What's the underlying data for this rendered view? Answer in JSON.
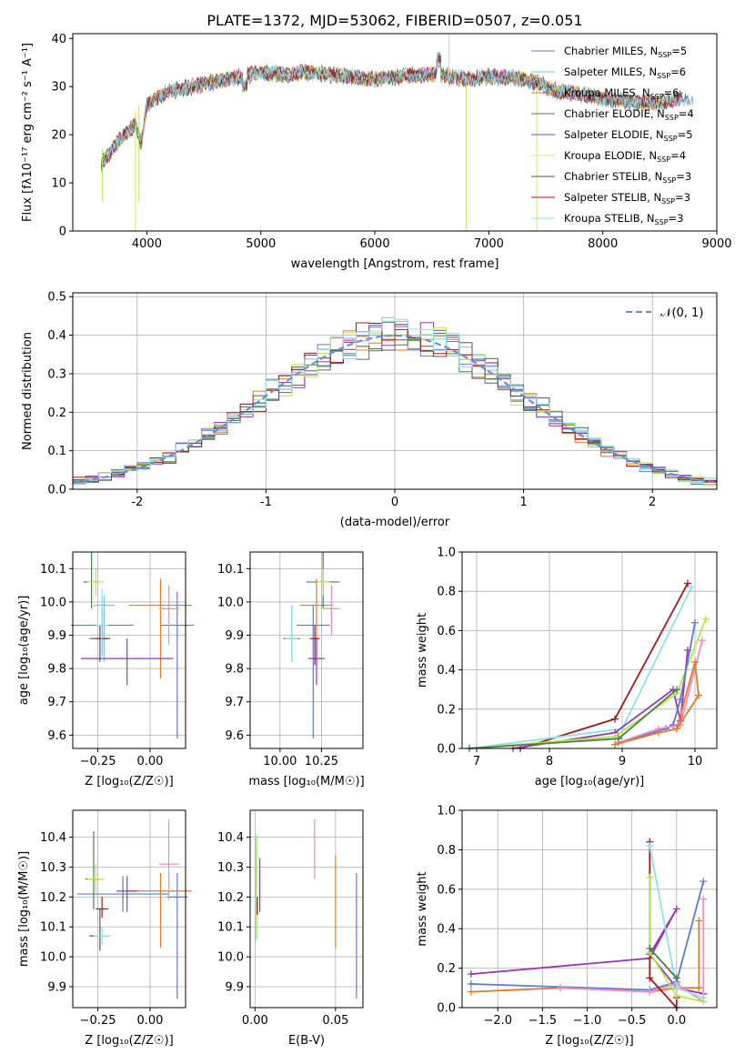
{
  "colors": {
    "chabrier_miles": "#5b7bd6",
    "salpeter_miles": "#7fbcf0",
    "kroupa_miles": "#e07b2a",
    "chabrier_elodie": "#4a7f4a",
    "salpeter_elodie": "#9b35b5",
    "kroupa_elodie": "#e5dc5a",
    "chabrier_stelib": "#555555",
    "salpeter_stelib": "#a31a1a",
    "kroupa_stelib": "#8fe0e8",
    "extra_pink": "#f08cbf",
    "extra_lime": "#b3e84a",
    "normal": "#6a8fd4",
    "grid": "#b0b0b0"
  },
  "chart_data": [
    {
      "id": "spectrum",
      "type": "line",
      "title": "PLATE=1372, MJD=53062, FIBERID=0507, z=0.051",
      "xlabel": "wavelength [Angstrom, rest frame]",
      "ylabel": "Flux [fλ10⁻¹⁷ erg cm⁻² s⁻¹ A⁻¹]",
      "xlim": [
        3350,
        9000
      ],
      "ylim": [
        0,
        41
      ],
      "xticks": [
        4000,
        5000,
        6000,
        7000,
        8000,
        9000
      ],
      "yticks": [
        0,
        10,
        20,
        30,
        40
      ],
      "grid": false,
      "legend_position": "top-right",
      "series": [
        {
          "name": "Chabrier MILES, N",
          "sub": "SSP",
          "suffix": "=5",
          "color": "#5b7bd6"
        },
        {
          "name": "Salpeter MILES, N",
          "sub": "SSP",
          "suffix": "=6",
          "color": "#7fbcf0"
        },
        {
          "name": "Kroupa MILES, N",
          "sub": "SSP",
          "suffix": "=6",
          "color": "#e07b2a"
        },
        {
          "name": "Chabrier ELODIE, N",
          "sub": "SSP",
          "suffix": "=4",
          "color": "#4a7f4a"
        },
        {
          "name": "Salpeter ELODIE, N",
          "sub": "SSP",
          "suffix": "=5",
          "color": "#9b35b5"
        },
        {
          "name": "Kroupa ELODIE, N",
          "sub": "SSP",
          "suffix": "=4",
          "color": "#e5dc5a"
        },
        {
          "name": "Chabrier STELIB, N",
          "sub": "SSP",
          "suffix": "=3",
          "color": "#555555"
        },
        {
          "name": "Salpeter STELIB, N",
          "sub": "SSP",
          "suffix": "=3",
          "color": "#a31a1a"
        },
        {
          "name": "Kroupa STELIB, N",
          "sub": "SSP",
          "suffix": "=3",
          "color": "#8fe0e8"
        }
      ],
      "continuum": {
        "x": [
          3600,
          3700,
          3800,
          3900,
          3950,
          4000,
          4100,
          4200,
          4400,
          4600,
          4800,
          5000,
          5200,
          5400,
          5600,
          5800,
          6000,
          6200,
          6400,
          6600,
          6800,
          7000,
          7200,
          7400,
          7600,
          7800,
          8000,
          8200,
          8400,
          8600,
          8800
        ],
        "y": [
          14,
          17,
          20,
          22,
          18,
          26,
          28,
          29,
          30,
          31,
          32,
          33,
          32.5,
          33,
          32.5,
          32,
          31.5,
          32,
          32.5,
          32.5,
          31.5,
          32,
          32,
          31,
          29,
          28.5,
          27.5,
          27,
          26.5,
          27,
          28
        ]
      }
    },
    {
      "id": "residuals",
      "type": "line",
      "xlabel": "(data-model)/error",
      "ylabel": "Normed distribution",
      "xlim": [
        -2.5,
        2.5
      ],
      "ylim": [
        0,
        0.51
      ],
      "xticks": [
        -2,
        -1,
        0,
        1,
        2
      ],
      "yticks": [
        0.0,
        0.1,
        0.2,
        0.3,
        0.4,
        0.5
      ],
      "ytick_labels": [
        "0.0",
        "0.1",
        "0.2",
        "0.3",
        "0.4",
        "0.5"
      ],
      "grid": true,
      "legend_position": "top-right",
      "normal_label": "𝒩(0, 1)"
    },
    {
      "id": "age_vs_Z",
      "type": "scatter",
      "xlabel": "Z [log₁₀(Z/Z☉)]",
      "ylabel": "age  [log₁₀(age/yr)]",
      "xlim": [
        -0.37,
        0.17
      ],
      "ylim": [
        9.56,
        10.15
      ],
      "xticks": [
        -0.25,
        0.0
      ],
      "xtick_labels": [
        "−0.25",
        "0.00"
      ],
      "yticks": [
        9.6,
        9.7,
        9.8,
        9.9,
        10.0,
        10.1
      ],
      "ytick_labels": [
        "9.6",
        "9.7",
        "9.8",
        "9.9",
        "10.0",
        "10.1"
      ],
      "grid": true,
      "points": [
        {
          "x": -0.23,
          "y": 9.93,
          "xerr": 0.15,
          "yerr": [
            0.06,
            0.05
          ],
          "c": "#5b7bd6"
        },
        {
          "x": 0.13,
          "y": 9.93,
          "xerr": 0.08,
          "yerr": [
            0.34,
            0.1
          ],
          "c": "#5b7bd6"
        },
        {
          "x": -0.22,
          "y": 9.99,
          "xerr": 0.05,
          "yerr": [
            0.17,
            0.03
          ],
          "c": "#7fbcf0"
        },
        {
          "x": 0.05,
          "y": 9.99,
          "xerr": 0.15,
          "yerr": [
            0.22,
            0.08
          ],
          "c": "#e07b2a"
        },
        {
          "x": -0.28,
          "y": 10.06,
          "xerr": 0.04,
          "yerr": [
            0.08,
            0.09
          ],
          "c": "#4a7f4a"
        },
        {
          "x": -0.11,
          "y": 9.83,
          "xerr": 0.22,
          "yerr": [
            0.08,
            0.06
          ],
          "c": "#9b35b5"
        },
        {
          "x": -0.26,
          "y": 10.06,
          "xerr": 0.04,
          "yerr": [
            0.04,
            0.04
          ],
          "c": "#b3e84a"
        },
        {
          "x": -0.24,
          "y": 9.89,
          "xerr": 0.05,
          "yerr": [
            0.07,
            0.04
          ],
          "c": "#555555"
        },
        {
          "x": -0.23,
          "y": 9.89,
          "xerr": 0.03,
          "yerr": [
            0.05,
            0.04
          ],
          "c": "#a31a1a"
        },
        {
          "x": 0.09,
          "y": 9.98,
          "xerr": 0.05,
          "yerr": [
            0.11,
            0.07
          ],
          "c": "#f08cbf"
        },
        {
          "x": -0.23,
          "y": 9.93,
          "xerr": 0.03,
          "yerr": [
            0.1,
            0.11
          ],
          "c": "#8fe0e8"
        }
      ]
    },
    {
      "id": "age_vs_mass",
      "type": "scatter",
      "xlabel": "mass [log₁₀(M/M☉)]",
      "ylabel": "",
      "xlim": [
        9.82,
        10.5
      ],
      "ylim": [
        9.56,
        10.15
      ],
      "xticks": [
        10.0,
        10.25
      ],
      "xtick_labels": [
        "10.00",
        "10.25"
      ],
      "yticks": [
        9.6,
        9.7,
        9.8,
        9.9,
        10.0,
        10.1
      ],
      "ytick_labels": [
        "9.6",
        "9.7",
        "9.8",
        "9.9",
        "10.0",
        "10.1"
      ],
      "grid": true,
      "points": [
        {
          "x": 10.2,
          "y": 9.93,
          "xerr": 0.1,
          "yerr": [
            0.34,
            0.06
          ],
          "c": "#5b7bd6"
        },
        {
          "x": 10.22,
          "y": 9.99,
          "xerr": 0.1,
          "yerr": [
            0.17,
            0.08
          ],
          "c": "#e07b2a"
        },
        {
          "x": 10.26,
          "y": 10.06,
          "xerr": 0.1,
          "yerr": [
            0.08,
            0.09
          ],
          "c": "#4a7f4a"
        },
        {
          "x": 10.22,
          "y": 9.83,
          "xerr": 0.05,
          "yerr": [
            0.08,
            0.06
          ],
          "c": "#9b35b5"
        },
        {
          "x": 10.26,
          "y": 10.06,
          "xerr": 0.04,
          "yerr": [
            0.04,
            0.04
          ],
          "c": "#b3e84a"
        },
        {
          "x": 10.07,
          "y": 9.89,
          "xerr": 0.05,
          "yerr": [
            0.07,
            0.1
          ],
          "c": "#555555"
        },
        {
          "x": 10.21,
          "y": 9.89,
          "xerr": 0.03,
          "yerr": [
            0.08,
            0.04
          ],
          "c": "#a31a1a"
        },
        {
          "x": 10.31,
          "y": 9.98,
          "xerr": 0.05,
          "yerr": [
            0.08,
            0.07
          ],
          "c": "#f08cbf"
        },
        {
          "x": 10.07,
          "y": 9.89,
          "xerr": 0.04,
          "yerr": [
            0.07,
            0.1
          ],
          "c": "#8fe0e8"
        }
      ]
    },
    {
      "id": "weight_vs_age",
      "type": "line",
      "xlabel": "age  [log₁₀(age/yr)]",
      "ylabel": "mass weight",
      "xlim": [
        6.8,
        10.3
      ],
      "ylim": [
        0,
        1.0
      ],
      "xticks": [
        7,
        8,
        9,
        10
      ],
      "yticks": [
        0.0,
        0.2,
        0.4,
        0.6,
        0.8,
        1.0
      ],
      "ytick_labels": [
        "0.0",
        "0.2",
        "0.4",
        "0.6",
        "0.8",
        "1.0"
      ],
      "grid": true,
      "series": [
        {
          "c": "#a31a1a",
          "x": [
            7.6,
            8.9,
            9.9
          ],
          "y": [
            0.0,
            0.15,
            0.84
          ]
        },
        {
          "c": "#8fe0e8",
          "x": [
            6.9,
            9.0,
            9.95
          ],
          "y": [
            0.0,
            0.1,
            0.82
          ]
        },
        {
          "c": "#9b35b5",
          "x": [
            7.5,
            8.9,
            9.7,
            9.8,
            9.9
          ],
          "y": [
            0.0,
            0.08,
            0.3,
            0.14,
            0.5
          ]
        },
        {
          "c": "#b3e84a",
          "x": [
            6.9,
            8.9,
            9.75,
            10.15
          ],
          "y": [
            0.0,
            0.06,
            0.28,
            0.66
          ]
        },
        {
          "c": "#5b7bd6",
          "x": [
            8.95,
            9.6,
            9.7,
            9.8,
            10.0
          ],
          "y": [
            0.03,
            0.1,
            0.12,
            0.25,
            0.64
          ]
        },
        {
          "c": "#f08cbf",
          "x": [
            8.95,
            9.5,
            9.8,
            10.1
          ],
          "y": [
            0.03,
            0.1,
            0.12,
            0.55
          ]
        },
        {
          "c": "#e07b2a",
          "x": [
            8.9,
            9.5,
            9.75,
            10.05
          ],
          "y": [
            0.02,
            0.08,
            0.1,
            0.27
          ]
        },
        {
          "c": "#e07b2a",
          "x": [
            9.75,
            10.0,
            10.05
          ],
          "y": [
            0.1,
            0.44,
            0.27
          ]
        },
        {
          "c": "#4a7f4a",
          "x": [
            6.9,
            8.95,
            9.75
          ],
          "y": [
            0.0,
            0.05,
            0.3
          ]
        }
      ]
    },
    {
      "id": "mass_vs_Z",
      "type": "scatter",
      "xlabel": "Z [log₁₀(Z/Z☉)]",
      "ylabel": "mass [log₁₀(M/M☉)]",
      "xlim": [
        -0.37,
        0.17
      ],
      "ylim": [
        9.83,
        10.49
      ],
      "xticks": [
        -0.25,
        0.0
      ],
      "xtick_labels": [
        "−0.25",
        "0.00"
      ],
      "yticks": [
        9.9,
        10.0,
        10.1,
        10.2,
        10.3,
        10.4
      ],
      "ytick_labels": [
        "9.9",
        "10.0",
        "10.1",
        "10.2",
        "10.3",
        "10.4"
      ],
      "grid": true,
      "points": [
        {
          "x": -0.13,
          "y": 10.21,
          "xerr": 0.22,
          "yerr": [
            0.06,
            0.06
          ],
          "c": "#5b7bd6"
        },
        {
          "x": 0.13,
          "y": 10.2,
          "xerr": 0.05,
          "yerr": [
            0.34,
            0.08
          ],
          "c": "#5b7bd6"
        },
        {
          "x": 0.05,
          "y": 10.22,
          "xerr": 0.15,
          "yerr": [
            0.19,
            0.06
          ],
          "c": "#e07b2a"
        },
        {
          "x": -0.27,
          "y": 10.26,
          "xerr": 0.04,
          "yerr": [
            0.1,
            0.16
          ],
          "c": "#4a7f4a"
        },
        {
          "x": -0.11,
          "y": 10.22,
          "xerr": 0.05,
          "yerr": [
            0.07,
            0.05
          ],
          "c": "#9b35b5"
        },
        {
          "x": -0.26,
          "y": 10.26,
          "xerr": 0.04,
          "yerr": [
            0.05,
            0.05
          ],
          "c": "#b3e84a"
        },
        {
          "x": -0.24,
          "y": 10.07,
          "xerr": 0.05,
          "yerr": [
            0.05,
            0.09
          ],
          "c": "#555555"
        },
        {
          "x": -0.23,
          "y": 10.16,
          "xerr": 0.03,
          "yerr": [
            0.03,
            0.04
          ],
          "c": "#a31a1a"
        },
        {
          "x": 0.09,
          "y": 10.31,
          "xerr": 0.05,
          "yerr": [
            0.12,
            0.15
          ],
          "c": "#f08cbf"
        },
        {
          "x": -0.23,
          "y": 10.07,
          "xerr": 0.04,
          "yerr": [
            0.03,
            0.03
          ],
          "c": "#8fe0e8"
        }
      ]
    },
    {
      "id": "mass_vs_ebv",
      "type": "scatter",
      "xlabel": "E(B-V)",
      "ylabel": "",
      "xlim": [
        -0.003,
        0.067
      ],
      "ylim": [
        9.83,
        10.49
      ],
      "xticks": [
        0.0,
        0.05
      ],
      "xtick_labels": [
        "0.00",
        "0.05"
      ],
      "yticks": [
        9.9,
        10.0,
        10.1,
        10.2,
        10.3,
        10.4
      ],
      "ytick_labels": [
        "9.9",
        "10.0",
        "10.1",
        "10.2",
        "10.3",
        "10.4"
      ],
      "grid": true,
      "points": [
        {
          "x": 0.063,
          "y": 10.07,
          "yerr": [
            0.21,
            0.21
          ],
          "c": "#5b7bd6"
        },
        {
          "x": 0.05,
          "y": 10.18,
          "yerr": [
            0.15,
            0.16
          ],
          "c": "#e07b2a"
        },
        {
          "x": 0.037,
          "y": 10.36,
          "yerr": [
            0.1,
            0.1
          ],
          "c": "#f08cbf"
        },
        {
          "x": 0.003,
          "y": 10.24,
          "yerr": [
            0.09,
            0.09
          ],
          "c": "#9b35b5"
        },
        {
          "x": 0.001,
          "y": 10.16,
          "yerr": [
            0.1,
            0.25
          ],
          "c": "#b3e84a"
        },
        {
          "x": 0.0015,
          "y": 10.17,
          "yerr": [
            0.03,
            0.03
          ],
          "c": "#a31a1a"
        },
        {
          "x": 0.0005,
          "y": 10.15,
          "yerr": [
            0.1,
            0.25
          ],
          "c": "#8fe0e8"
        }
      ]
    },
    {
      "id": "weight_vs_Z",
      "type": "line",
      "xlabel": "Z [log₁₀(Z/Z☉)]",
      "ylabel": "mass weight",
      "xlim": [
        -2.4,
        0.45
      ],
      "ylim": [
        0,
        1.0
      ],
      "xticks": [
        -2.0,
        -1.5,
        -1.0,
        -0.5,
        0.0
      ],
      "xtick_labels": [
        "−2.0",
        "−1.5",
        "−1.0",
        "−0.5",
        "0.0"
      ],
      "yticks": [
        0.0,
        0.2,
        0.4,
        0.6,
        0.8,
        1.0
      ],
      "ytick_labels": [
        "0.0",
        "0.2",
        "0.4",
        "0.6",
        "0.8",
        "1.0"
      ],
      "grid": true,
      "series": [
        {
          "c": "#9b35b5",
          "x": [
            -2.3,
            -0.3,
            0.0,
            -0.3,
            0.0,
            0.3
          ],
          "y": [
            0.17,
            0.25,
            0.5,
            0.27,
            0.1,
            0.07
          ]
        },
        {
          "c": "#5b7bd6",
          "x": [
            -2.3,
            -0.3,
            0.0,
            0.3
          ],
          "y": [
            0.12,
            0.09,
            0.13,
            0.64
          ]
        },
        {
          "c": "#e07b2a",
          "x": [
            -2.3,
            -1.3,
            -0.3,
            0.0,
            0.25,
            0.25
          ],
          "y": [
            0.08,
            0.1,
            0.08,
            0.1,
            0.1,
            0.44
          ]
        },
        {
          "c": "#f08cbf",
          "x": [
            -1.3,
            -0.3,
            0.0,
            0.3,
            0.3
          ],
          "y": [
            0.1,
            0.08,
            0.12,
            0.03,
            0.55
          ]
        },
        {
          "c": "#a31a1a",
          "x": [
            -0.3,
            -0.3,
            0.0,
            0.0
          ],
          "y": [
            0.84,
            0.15,
            0.0,
            0.05
          ]
        },
        {
          "c": "#8fe0e8",
          "x": [
            -0.3,
            0.0,
            0.3
          ],
          "y": [
            0.82,
            0.1,
            0.05
          ]
        },
        {
          "c": "#b3e84a",
          "x": [
            -0.3,
            -0.3,
            0.0,
            0.3
          ],
          "y": [
            0.66,
            0.28,
            0.06,
            0.03
          ]
        },
        {
          "c": "#4a7f4a",
          "x": [
            -0.3,
            0.0
          ],
          "y": [
            0.3,
            0.15
          ]
        }
      ]
    }
  ]
}
